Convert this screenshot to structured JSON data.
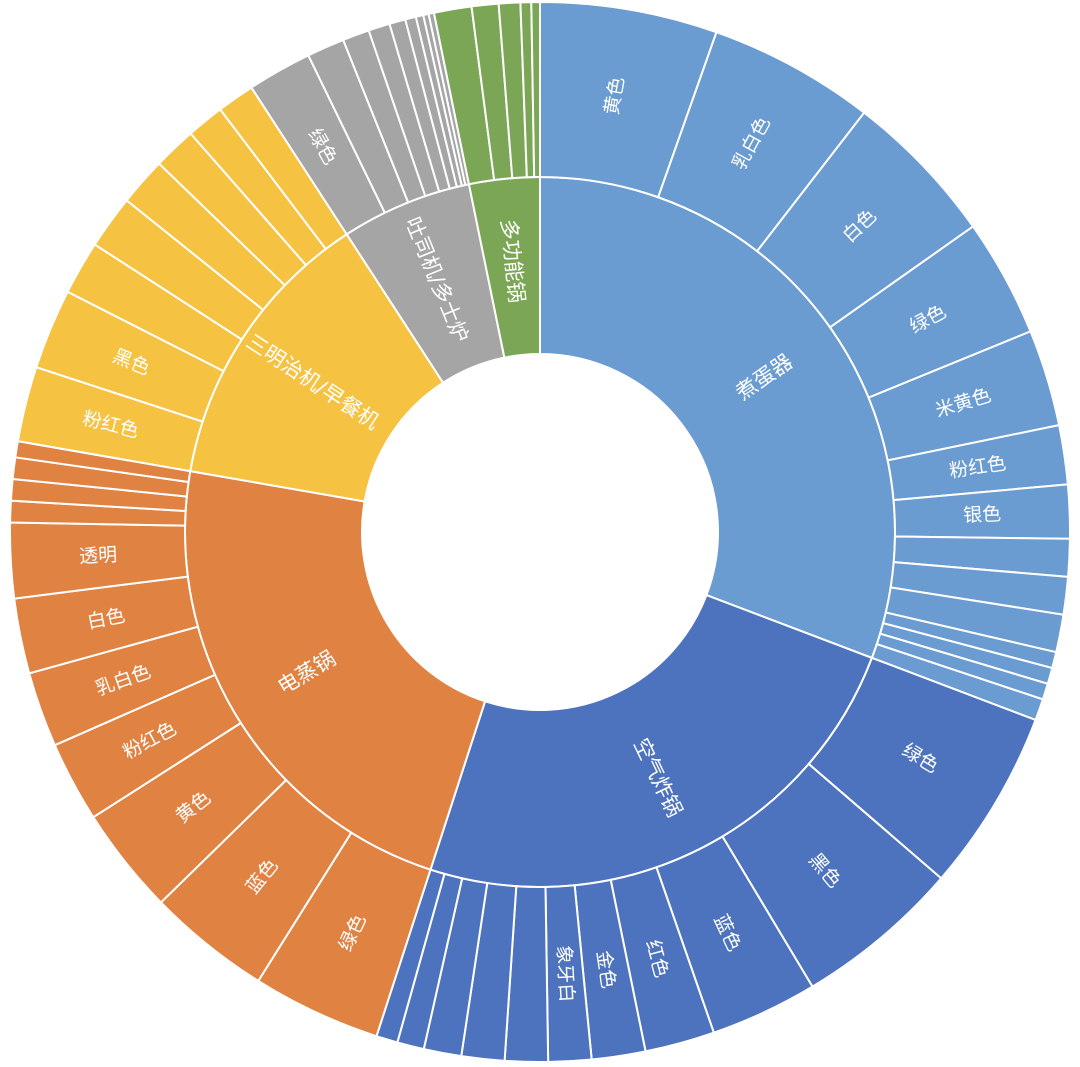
{
  "chart_data": {
    "type": "sunburst",
    "title": "",
    "start_angle_deg": 0,
    "direction": "clockwise",
    "categories": [
      {
        "name": "煮蛋器",
        "color": "#6A9BD1",
        "children": [
          {
            "name": "黄色",
            "value": 16.5
          },
          {
            "name": "乳白色",
            "value": 15.5
          },
          {
            "name": "白色",
            "value": 14.5
          },
          {
            "name": "绿色",
            "value": 11
          },
          {
            "name": "米黄色",
            "value": 9
          },
          {
            "name": "粉红色",
            "value": 5.5
          },
          {
            "name": "银色",
            "value": 5
          },
          {
            "name": "",
            "value": 3.5
          },
          {
            "name": "",
            "value": 3.5
          },
          {
            "name": "",
            "value": 3.5
          },
          {
            "name": "",
            "value": 1.5
          },
          {
            "name": "",
            "value": 1.5
          },
          {
            "name": "",
            "value": 1.5
          },
          {
            "name": "",
            "value": 2
          }
        ]
      },
      {
        "name": "空气炸锅",
        "color": "#4E73BE",
        "children": [
          {
            "name": "绿色",
            "value": 17
          },
          {
            "name": "黑色",
            "value": 15.5
          },
          {
            "name": "蓝色",
            "value": 10
          },
          {
            "name": "红色",
            "value": 6.5
          },
          {
            "name": "金色",
            "value": 5
          },
          {
            "name": "象牙白",
            "value": 4
          },
          {
            "name": "",
            "value": 4
          },
          {
            "name": "",
            "value": 4
          },
          {
            "name": "",
            "value": 3.5
          },
          {
            "name": "",
            "value": 2.5
          },
          {
            "name": "",
            "value": 2
          }
        ]
      },
      {
        "name": "电蒸锅",
        "color": "#E08242",
        "children": [
          {
            "name": "绿色",
            "value": 12
          },
          {
            "name": "蓝色",
            "value": 11.5
          },
          {
            "name": "黄色",
            "value": 10
          },
          {
            "name": "粉红色",
            "value": 7.5
          },
          {
            "name": "乳白色",
            "value": 7
          },
          {
            "name": "白色",
            "value": 7
          },
          {
            "name": "透明",
            "value": 7
          },
          {
            "name": "",
            "value": 2
          },
          {
            "name": "",
            "value": 2
          },
          {
            "name": "",
            "value": 2
          },
          {
            "name": "",
            "value": 1.5
          }
        ]
      },
      {
        "name": "三明治机/早餐机",
        "color": "#F5C242",
        "children": [
          {
            "name": "粉红色",
            "value": 7
          },
          {
            "name": "黑色",
            "value": 7.5
          },
          {
            "name": "",
            "value": 5
          },
          {
            "name": "",
            "value": 5
          },
          {
            "name": "",
            "value": 4.5
          },
          {
            "name": "",
            "value": 4
          },
          {
            "name": "",
            "value": 3.5
          },
          {
            "name": "",
            "value": 3.5
          }
        ]
      },
      {
        "name": "吐司机/多士炉",
        "color": "#A5A5A5",
        "children": [
          {
            "name": "绿色",
            "value": 6
          },
          {
            "name": "",
            "value": 3.5
          },
          {
            "name": "",
            "value": 2.5
          },
          {
            "name": "",
            "value": 2
          },
          {
            "name": "",
            "value": 1.5
          },
          {
            "name": "",
            "value": 1
          },
          {
            "name": "",
            "value": 0.7
          },
          {
            "name": "",
            "value": 0.5
          },
          {
            "name": "",
            "value": 0.5
          }
        ]
      },
      {
        "name": "多功能锅",
        "color": "#7BA655",
        "children": [
          {
            "name": "",
            "value": 3.5
          },
          {
            "name": "",
            "value": 2.5
          },
          {
            "name": "",
            "value": 2
          },
          {
            "name": "",
            "value": 1
          },
          {
            "name": "",
            "value": 0.8
          }
        ]
      }
    ]
  }
}
